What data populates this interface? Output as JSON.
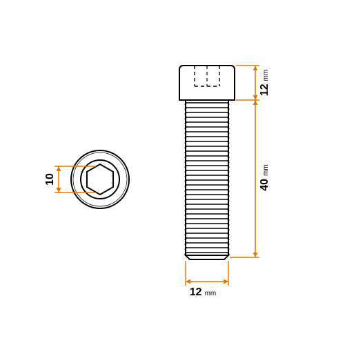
{
  "drawing": {
    "type": "technical-drawing",
    "background_color": "#ffffff",
    "line_color": "#000000",
    "line_width": 2,
    "dimension_color": "#e67700",
    "dimension_line_width": 1.5,
    "dimension_font_color": "#000000",
    "dimension_value_fontsize": 16,
    "dimension_unit_fontsize": 10,
    "unit_label": "mm"
  },
  "dims": {
    "hex_key": {
      "value": "10"
    },
    "thread_dia": {
      "value": "12",
      "unit": "mm"
    },
    "thread_len": {
      "value": "40",
      "unit": "mm"
    },
    "head_height": {
      "value": "12",
      "unit": "mm"
    }
  }
}
